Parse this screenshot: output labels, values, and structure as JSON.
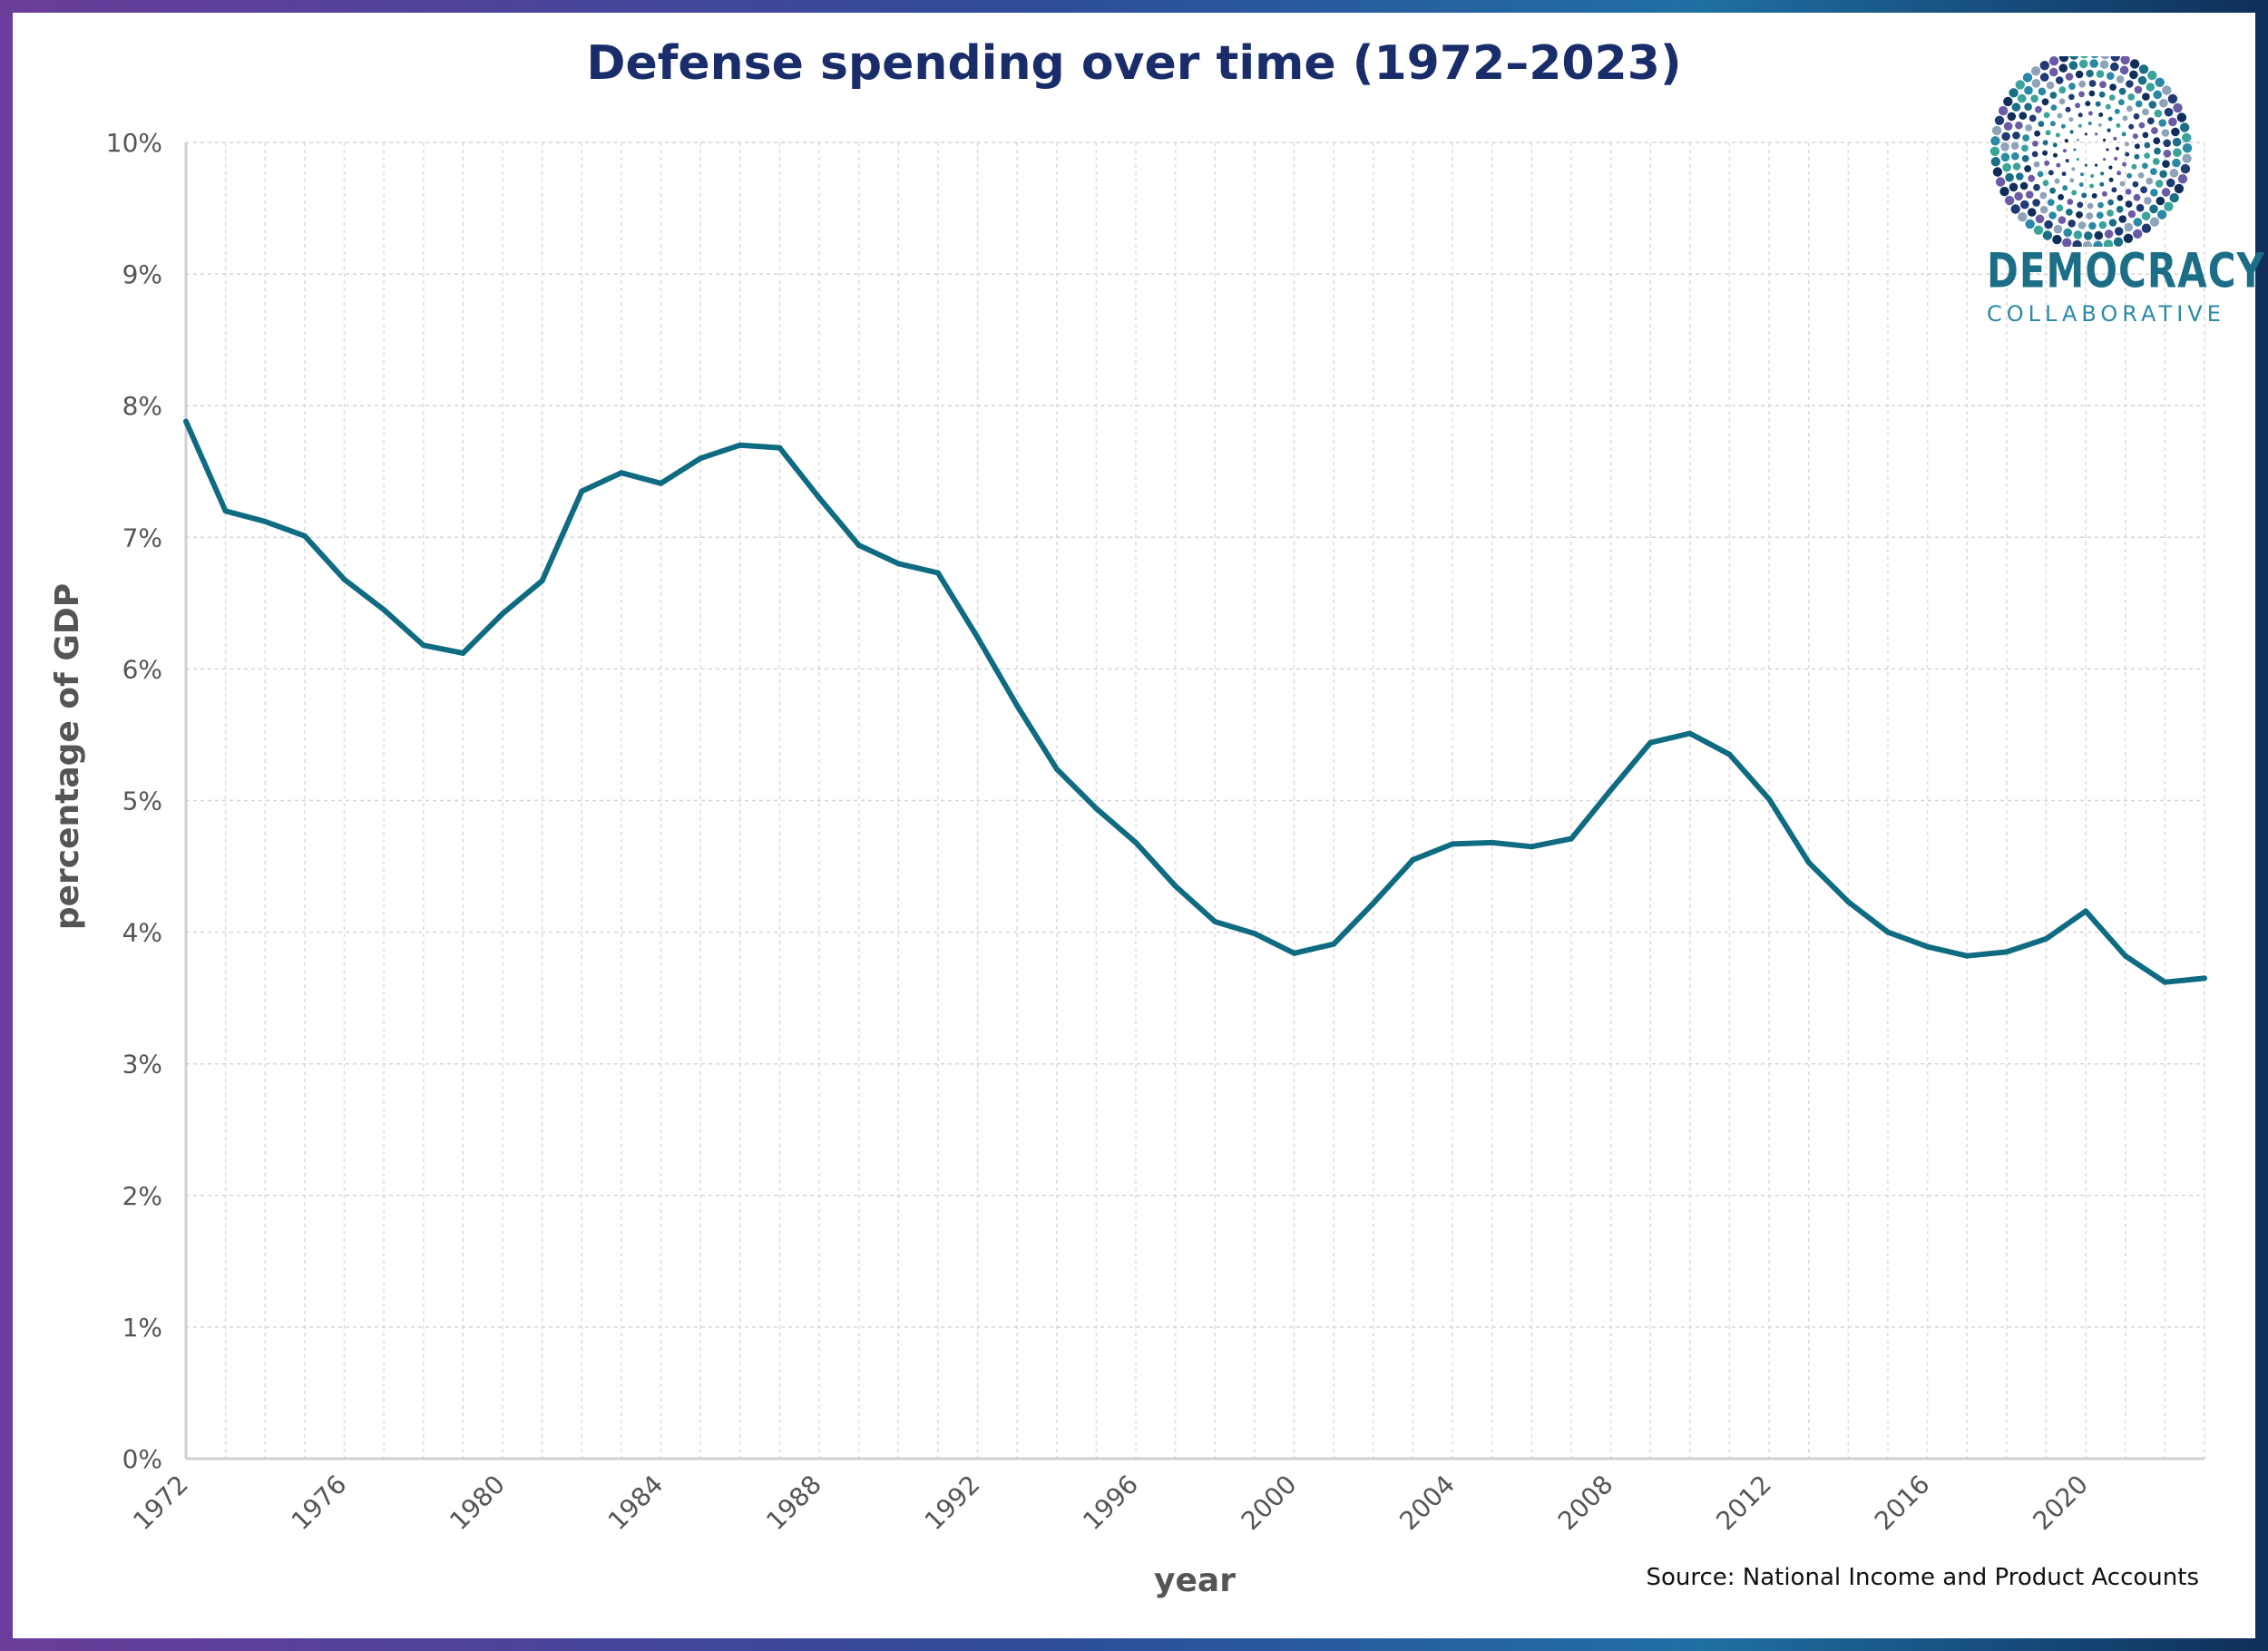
{
  "chart_data": {
    "type": "line",
    "title": "Defense spending over time (1972–2023)",
    "xlabel": "year",
    "ylabel": "percentage of GDP",
    "source": "Source: National Income and Product Accounts",
    "ylim": [
      0,
      10
    ],
    "xlim": [
      1972,
      2023
    ],
    "y_ticks": [
      "0%",
      "1%",
      "2%",
      "3%",
      "4%",
      "5%",
      "6%",
      "7%",
      "8%",
      "9%",
      "10%"
    ],
    "x_ticks": [
      "1972",
      "1976",
      "1980",
      "1984",
      "1988",
      "1992",
      "1996",
      "2000",
      "2004",
      "2008",
      "2012",
      "2016",
      "2020"
    ],
    "grid": true,
    "line_color": "#0f6b82",
    "series": [
      {
        "x": [
          1972,
          1973,
          1974,
          1975,
          1976,
          1977,
          1978,
          1979,
          1980,
          1981,
          1982,
          1983,
          1984,
          1985,
          1986,
          1987,
          1988,
          1989,
          1990,
          1991,
          1992,
          1993,
          1994,
          1995,
          1996,
          1997,
          1998,
          1999,
          2000,
          2001,
          2002,
          2003,
          2004,
          2005,
          2006,
          2007,
          2008,
          2009,
          2010,
          2011,
          2012,
          2013,
          2014,
          2015,
          2016,
          2017,
          2018,
          2019,
          2020,
          2021,
          2022,
          2023
        ],
        "values": [
          7.88,
          7.2,
          7.12,
          7.01,
          6.68,
          6.45,
          6.18,
          6.12,
          6.42,
          6.67,
          7.35,
          7.49,
          7.41,
          7.6,
          7.7,
          7.68,
          7.3,
          6.94,
          6.8,
          6.73,
          6.24,
          5.72,
          5.24,
          4.94,
          4.68,
          4.35,
          4.08,
          3.99,
          3.84,
          3.91,
          4.22,
          4.55,
          4.67,
          4.68,
          4.65,
          4.71,
          5.08,
          5.44,
          5.51,
          5.35,
          5.01,
          4.53,
          4.23,
          4.0,
          3.89,
          3.82,
          3.85,
          3.95,
          4.16,
          3.82,
          3.62,
          3.65
        ]
      }
    ]
  },
  "logo": {
    "name": "DEMOCRACY",
    "sub": "COLLABORATIVE"
  }
}
